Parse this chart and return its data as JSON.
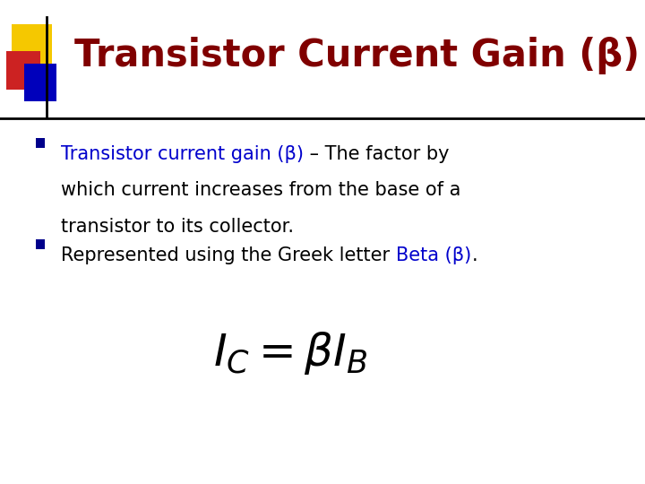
{
  "title": "Transistor Current Gain (β)",
  "title_color": "#800000",
  "title_fontsize": 30,
  "bg_color": "#FFFFFF",
  "bullet1_highlighted": "Transistor current gain (β)",
  "bullet1_rest_line1": " – The factor by",
  "bullet1_line2": "which current increases from the base of a",
  "bullet1_line3": "transistor to its collector.",
  "bullet2_normal": "Represented using the Greek letter ",
  "bullet2_highlighted": "Beta (β)",
  "bullet2_end": ".",
  "bullet_color_highlight": "#0000CC",
  "bullet_color_normal": "#000000",
  "bullet_fontsize": 15,
  "bullet_marker_color": "#00008B",
  "formula": "$I_C = \\beta I_B$",
  "formula_fontsize": 36,
  "formula_color": "#000000",
  "decoration_yellow": "#F5C800",
  "decoration_red": "#CC2222",
  "decoration_blue": "#0000BB",
  "line_color": "#000000"
}
